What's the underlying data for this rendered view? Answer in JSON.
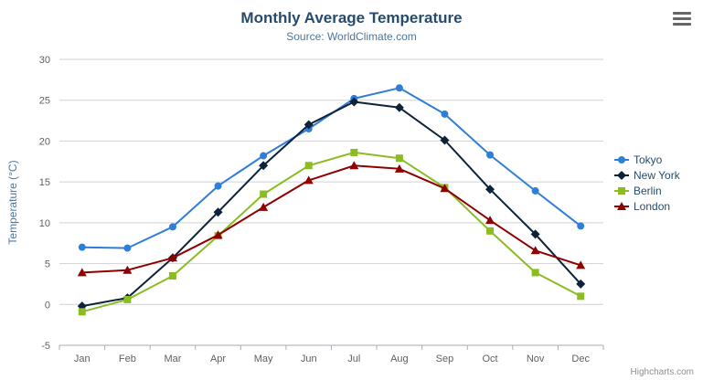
{
  "header": {
    "title": "Monthly Average Temperature",
    "subtitle": "Source: WorldClimate.com",
    "menu_icon": "hamburger-menu-icon"
  },
  "credits": "Highcharts.com",
  "chart_data": {
    "type": "line",
    "title": "Monthly Average Temperature",
    "subtitle": "Source: WorldClimate.com",
    "categories": [
      "Jan",
      "Feb",
      "Mar",
      "Apr",
      "May",
      "Jun",
      "Jul",
      "Aug",
      "Sep",
      "Oct",
      "Nov",
      "Dec"
    ],
    "xlabel": "",
    "ylabel": "Temperature (°C)",
    "ylim": [
      -5,
      30
    ],
    "yticks": [
      -5,
      0,
      5,
      10,
      15,
      20,
      25,
      30
    ],
    "grid": true,
    "legend_position": "right",
    "colors": {
      "grid": "#d2d2d2",
      "axis_line": "#a4adb5",
      "axis_label": "#606060",
      "axis_title": "#4d759e",
      "title": "#274b6d",
      "subtitle": "#4d759e",
      "legend_text": "#274b6d"
    },
    "series": [
      {
        "name": "Tokyo",
        "color": "#2f7ed8",
        "marker": "circle",
        "values": [
          7.0,
          6.9,
          9.5,
          14.5,
          18.2,
          21.5,
          25.2,
          26.5,
          23.3,
          18.3,
          13.9,
          9.6
        ]
      },
      {
        "name": "New York",
        "color": "#0d233a",
        "marker": "diamond",
        "values": [
          -0.2,
          0.8,
          5.7,
          11.3,
          17.0,
          22.0,
          24.8,
          24.1,
          20.1,
          14.1,
          8.6,
          2.5
        ]
      },
      {
        "name": "Berlin",
        "color": "#8bbc21",
        "marker": "square",
        "values": [
          -0.9,
          0.6,
          3.5,
          8.4,
          13.5,
          17.0,
          18.6,
          17.9,
          14.3,
          9.0,
          3.9,
          1.0
        ]
      },
      {
        "name": "London",
        "color": "#910000",
        "marker": "triangle",
        "values": [
          3.9,
          4.2,
          5.7,
          8.5,
          11.9,
          15.2,
          17.0,
          16.6,
          14.2,
          10.3,
          6.6,
          4.8
        ]
      }
    ]
  }
}
